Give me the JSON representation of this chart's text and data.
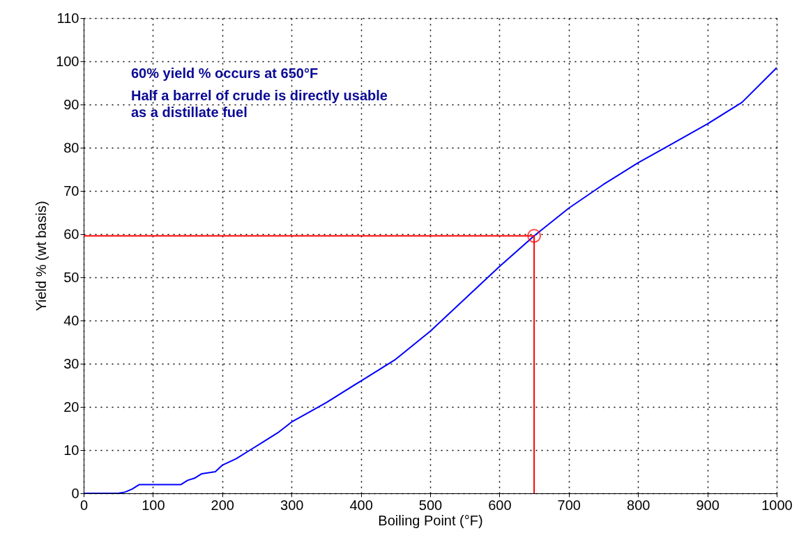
{
  "chart_data": {
    "type": "line",
    "xlabel": "Boiling Point (°F)",
    "ylabel": "Yield % (wt basis)",
    "xlim": [
      0,
      1000
    ],
    "ylim": [
      0,
      110
    ],
    "xticks": [
      0,
      100,
      200,
      300,
      400,
      500,
      600,
      700,
      800,
      900,
      1000
    ],
    "yticks": [
      0,
      10,
      20,
      30,
      40,
      50,
      60,
      70,
      80,
      90,
      100,
      110
    ],
    "grid": true,
    "line_style": "solid",
    "annotations": [
      "60% yield % occurs at 650°F",
      "Half a barrel of crude is directly usable\nas a distillate fuel"
    ],
    "series": [
      {
        "color": "#0000ff",
        "x": [
          0,
          50,
          60,
          70,
          80,
          100,
          140,
          150,
          160,
          170,
          190,
          200,
          220,
          240,
          260,
          280,
          300,
          350,
          400,
          450,
          500,
          550,
          600,
          650,
          700,
          750,
          800,
          850,
          900,
          950,
          1000
        ],
        "values": [
          0,
          0,
          0.3,
          1,
          2,
          2,
          2,
          3,
          3.5,
          4.5,
          5,
          6.5,
          8,
          10,
          12,
          14,
          16.5,
          21,
          26,
          31,
          37.5,
          45,
          52.5,
          59.6,
          66,
          71.5,
          76.5,
          81,
          85.5,
          90.5,
          98.5
        ]
      },
      {
        "type": "line",
        "color": "#ff0000",
        "x": [
          0,
          650,
          650
        ],
        "values": [
          59.6,
          59.6,
          0
        ]
      },
      {
        "type": "scatter",
        "color": "#ff0000",
        "marker": "circle",
        "x": [
          650
        ],
        "values": [
          59.6
        ]
      }
    ]
  }
}
